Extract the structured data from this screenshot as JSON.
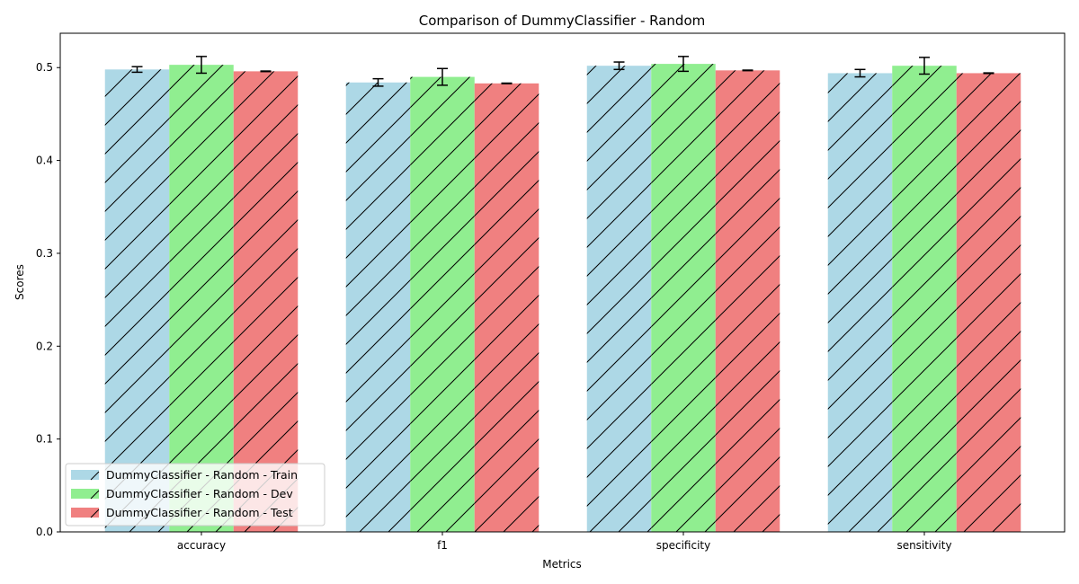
{
  "chart_data": {
    "type": "bar",
    "title": "Comparison of DummyClassifier - Random",
    "xlabel": "Metrics",
    "ylabel": "Scores",
    "categories": [
      "accuracy",
      "f1",
      "specificity",
      "sensitivity"
    ],
    "ylim": [
      0,
      0.537
    ],
    "yticks": [
      0.0,
      0.1,
      0.2,
      0.3,
      0.4,
      0.5
    ],
    "grid": false,
    "legend_position": "lower-left",
    "hatch": "diagonal",
    "series": [
      {
        "name": "DummyClassifier - Random - Train",
        "color": "#add8e6",
        "values": [
          0.498,
          0.484,
          0.502,
          0.494
        ],
        "errors": [
          0.003,
          0.004,
          0.004,
          0.004
        ]
      },
      {
        "name": "DummyClassifier - Random - Dev",
        "color": "#90ee90",
        "values": [
          0.503,
          0.49,
          0.504,
          0.502
        ],
        "errors": [
          0.009,
          0.009,
          0.008,
          0.009
        ]
      },
      {
        "name": "DummyClassifier - Random - Test",
        "color": "#f08080",
        "values": [
          0.496,
          0.483,
          0.497,
          0.494
        ],
        "errors": [
          0.0003,
          0.0003,
          0.0003,
          0.0003
        ]
      }
    ]
  }
}
